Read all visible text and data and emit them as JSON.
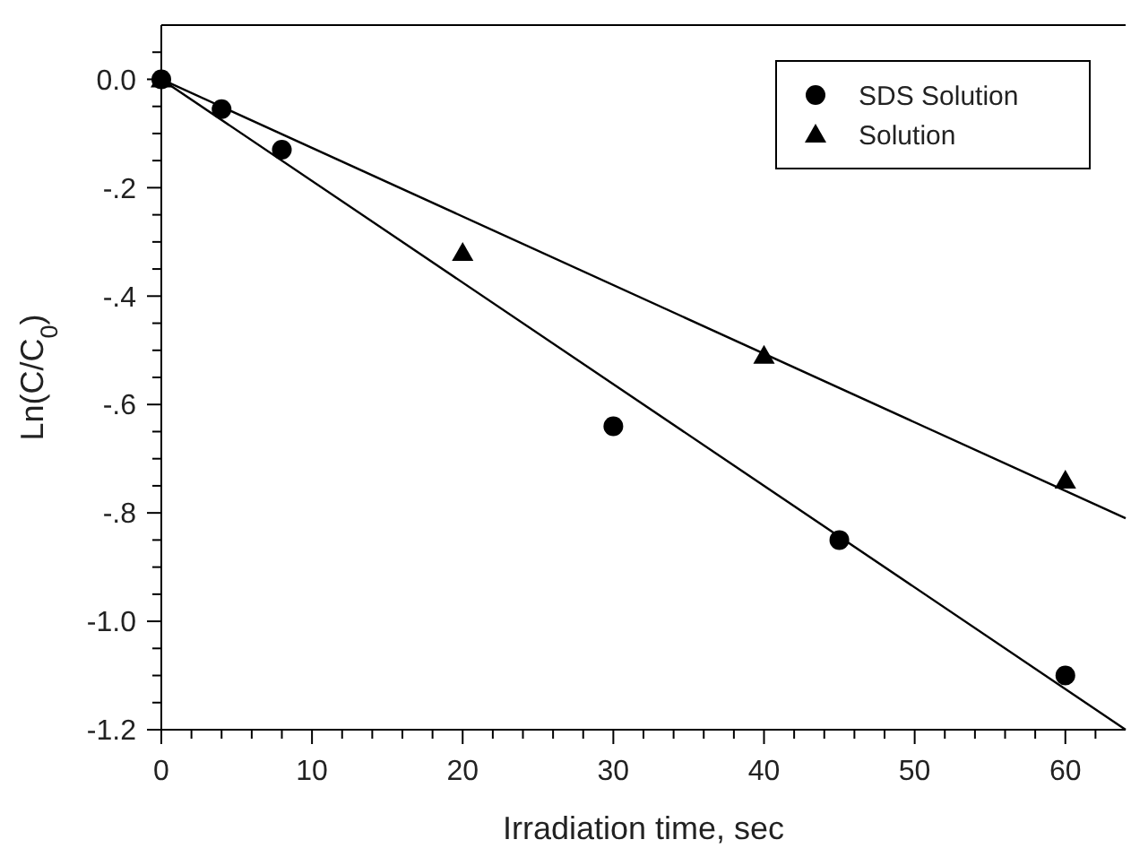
{
  "chart_data": {
    "type": "scatter",
    "xlabel": "Irradiation time, sec",
    "ylabel": "Ln(C/C$_{0}$)",
    "xlim": [
      0,
      64
    ],
    "ylim": [
      -1.2,
      0.1
    ],
    "xticks": [
      0,
      {
        "value": 2,
        "label": null
      },
      {
        "value": 4,
        "label": null
      },
      {
        "value": 6,
        "label": null
      },
      {
        "value": 8,
        "label": null
      },
      10,
      {
        "value": 12,
        "label": null
      },
      {
        "value": 14,
        "label": null
      },
      {
        "value": 16,
        "label": null
      },
      {
        "value": 18,
        "label": null
      },
      20,
      {
        "value": 22,
        "label": null
      },
      {
        "value": 24,
        "label": null
      },
      {
        "value": 26,
        "label": null
      },
      {
        "value": 28,
        "label": null
      },
      30,
      {
        "value": 32,
        "label": null
      },
      {
        "value": 34,
        "label": null
      },
      {
        "value": 36,
        "label": null
      },
      {
        "value": 38,
        "label": null
      },
      40,
      {
        "value": 42,
        "label": null
      },
      {
        "value": 44,
        "label": null
      },
      {
        "value": 46,
        "label": null
      },
      {
        "value": 48,
        "label": null
      },
      50,
      {
        "value": 52,
        "label": null
      },
      {
        "value": 54,
        "label": null
      },
      {
        "value": 56,
        "label": null
      },
      {
        "value": 58,
        "label": null
      },
      60,
      {
        "value": 62,
        "label": null
      }
    ],
    "yticks": [
      {
        "value": 0,
        "label": "0.0"
      },
      {
        "value": -0.05,
        "label": null
      },
      {
        "value": -0.1,
        "label": null
      },
      {
        "value": -0.15,
        "label": null
      },
      {
        "value": -0.2,
        "label": "-.2"
      },
      {
        "value": -0.25,
        "label": null
      },
      {
        "value": -0.3,
        "label": null
      },
      {
        "value": -0.35,
        "label": null
      },
      {
        "value": -0.4,
        "label": "-.4"
      },
      {
        "value": -0.45,
        "label": null
      },
      {
        "value": -0.5,
        "label": null
      },
      {
        "value": -0.55,
        "label": null
      },
      {
        "value": -0.6,
        "label": "-.6"
      },
      {
        "value": -0.65,
        "label": null
      },
      {
        "value": -0.7,
        "label": null
      },
      {
        "value": -0.75,
        "label": null
      },
      {
        "value": -0.8,
        "label": "-.8"
      },
      {
        "value": -0.85,
        "label": null
      },
      {
        "value": -0.9,
        "label": null
      },
      {
        "value": -0.95,
        "label": null
      },
      {
        "value": -1.0,
        "label": "-1.0"
      },
      {
        "value": -1.05,
        "label": null
      },
      {
        "value": -1.1,
        "label": null
      },
      {
        "value": -1.15,
        "label": null
      },
      {
        "value": -1.2,
        "label": "-1.2"
      },
      {
        "value": 0.05,
        "label": null
      }
    ],
    "legend": "top right",
    "grid": false,
    "series": [
      {
        "name": "SDS Solution",
        "color": "#000000",
        "marker": "circle",
        "x": [
          0,
          4,
          8,
          30,
          45,
          60
        ],
        "values": [
          0,
          -0.055,
          -0.13,
          -0.64,
          -0.85,
          -1.1
        ]
      },
      {
        "name": "Solution",
        "color": "#000000",
        "marker": "triangle",
        "x": [
          0,
          20,
          40,
          60
        ],
        "values": [
          0,
          -0.32,
          -0.51,
          -0.74
        ]
      },
      {
        "type": "line",
        "color": "#000000",
        "marker": "none",
        "line_style": "solid",
        "x": [
          0,
          64
        ],
        "values": [
          0,
          -1.2
        ]
      },
      {
        "type": "line",
        "color": "#000000",
        "marker": "none",
        "line_style": "solid",
        "x": [
          0,
          64
        ],
        "values": [
          0,
          -0.81
        ]
      }
    ]
  }
}
